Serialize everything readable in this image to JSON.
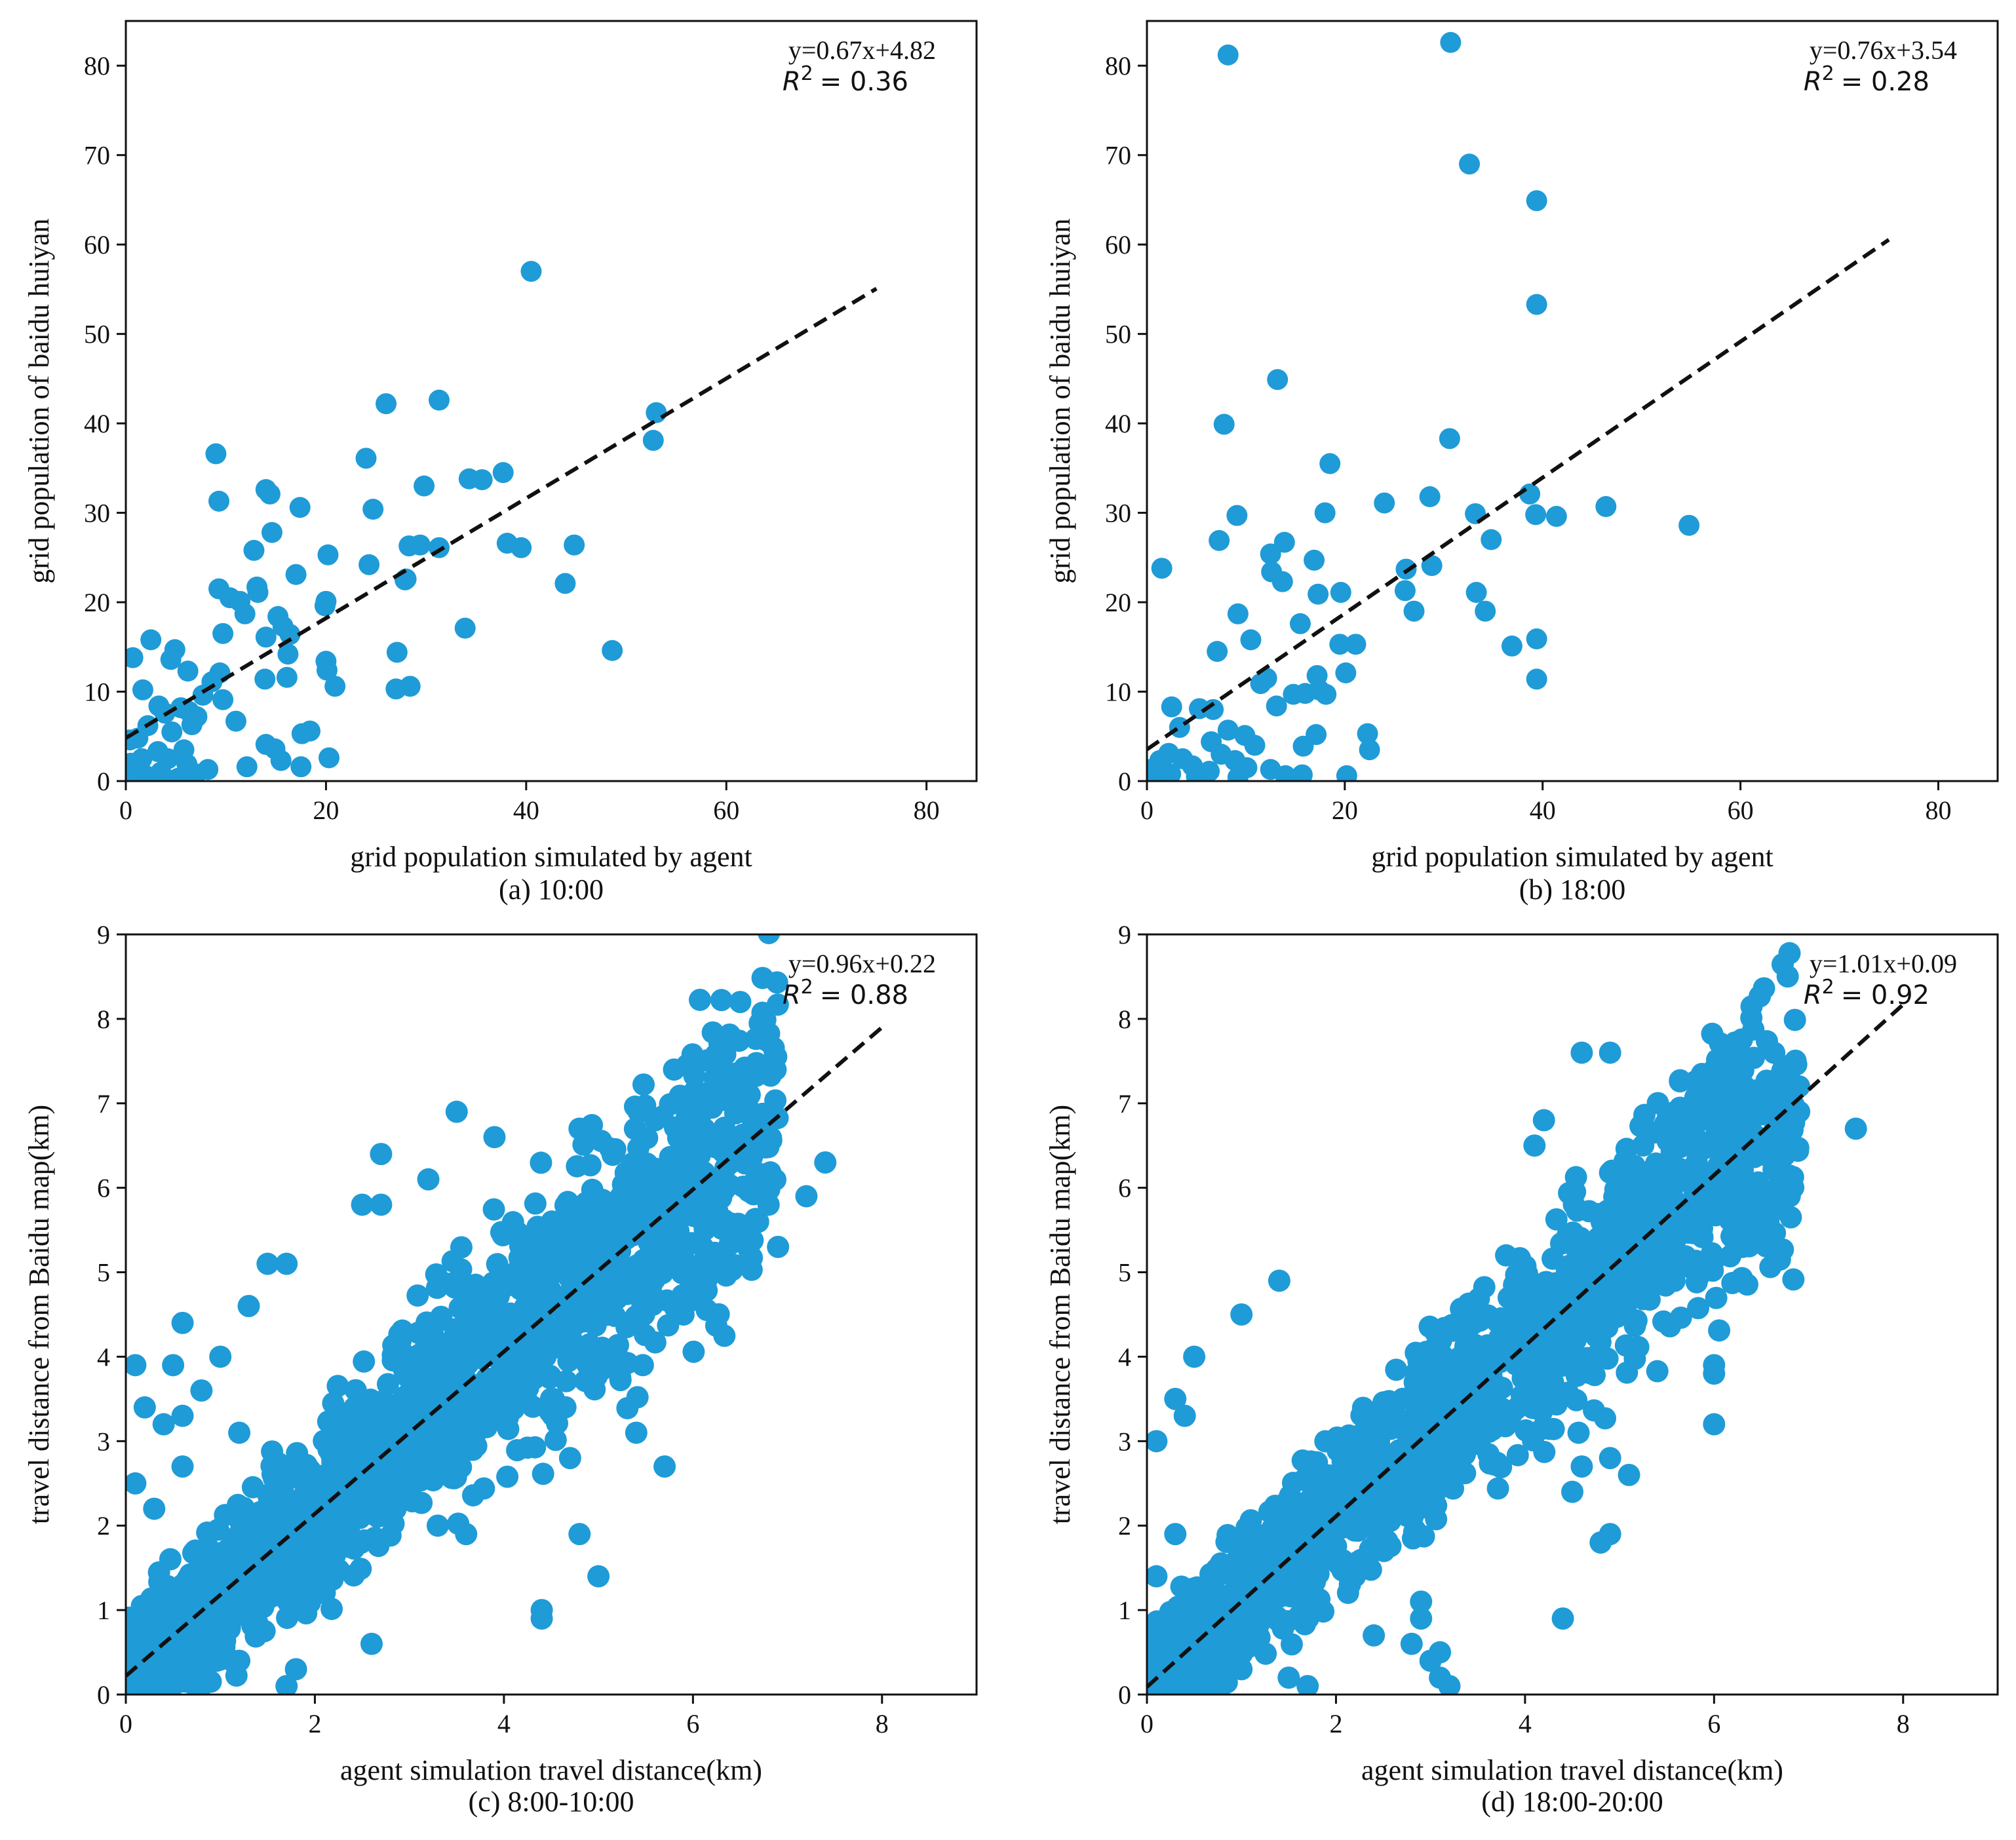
{
  "figure": {
    "colors": {
      "points": "#1f9bd7",
      "fit_line": "#111111",
      "axes": "#111111",
      "background": "#ffffff"
    }
  },
  "chart_data": [
    {
      "id": "a",
      "type": "scatter",
      "caption": "(a) 10:00",
      "xlabel": "grid population simulated by agent",
      "ylabel": "grid population of baidu huiyan",
      "xlim": [
        0,
        85
      ],
      "ylim": [
        0,
        85
      ],
      "xticks": [
        0,
        20,
        40,
        60,
        80
      ],
      "yticks": [
        0,
        10,
        20,
        30,
        40,
        50,
        60,
        70,
        80
      ],
      "fit": {
        "slope": 0.67,
        "intercept": 4.82,
        "x_end": 75
      },
      "equation": "y=0.67x+4.82",
      "r2_symbol": "R",
      "r2_exponent": "2",
      "r2_value": "= 0.36",
      "legend_position": "top-right",
      "points": [
        [
          40.5,
          57
        ],
        [
          31.3,
          42.6
        ],
        [
          26,
          42.2
        ],
        [
          53,
          41.2
        ],
        [
          52.7,
          38.1
        ],
        [
          9,
          36.6
        ],
        [
          24,
          36.1
        ],
        [
          37.7,
          34.5
        ],
        [
          34.3,
          33.8
        ],
        [
          35.6,
          33.7
        ],
        [
          29.8,
          33
        ],
        [
          14,
          32.6
        ],
        [
          14.4,
          32.1
        ],
        [
          9.3,
          31.3
        ],
        [
          17.4,
          30.6
        ],
        [
          24.7,
          30.4
        ],
        [
          14.6,
          27.8
        ],
        [
          38.1,
          26.6
        ],
        [
          39.5,
          26.1
        ],
        [
          44.8,
          26.4
        ],
        [
          28.3,
          26.3
        ],
        [
          29.4,
          26.4
        ],
        [
          31.3,
          26.1
        ],
        [
          12.8,
          25.8
        ],
        [
          20.2,
          25.3
        ],
        [
          24.3,
          24.2
        ],
        [
          17,
          23.1
        ],
        [
          28,
          22.6
        ],
        [
          27.9,
          22.5
        ],
        [
          43.9,
          22.1
        ],
        [
          9.3,
          21.5
        ],
        [
          13.1,
          21.7
        ],
        [
          13.2,
          21.1
        ],
        [
          10.4,
          20.5
        ],
        [
          11.4,
          20.1
        ],
        [
          20,
          20.1
        ],
        [
          19.9,
          19.6
        ],
        [
          11.9,
          18.7
        ],
        [
          15.2,
          18.4
        ],
        [
          15.7,
          17.3
        ],
        [
          33.9,
          17.1
        ],
        [
          16.4,
          16.4
        ],
        [
          9.7,
          16.5
        ],
        [
          14,
          16.1
        ],
        [
          2.5,
          15.8
        ],
        [
          4.9,
          14.7
        ],
        [
          16.2,
          14.2
        ],
        [
          27.1,
          14.4
        ],
        [
          48.6,
          14.6
        ],
        [
          0.7,
          13.8
        ],
        [
          4.5,
          13.6
        ],
        [
          20,
          13.4
        ],
        [
          20.1,
          12.4
        ],
        [
          6.2,
          12.3
        ],
        [
          9.4,
          12.1
        ],
        [
          13.9,
          11.4
        ],
        [
          16.1,
          11.6
        ],
        [
          8.6,
          11.1
        ],
        [
          20.9,
          10.6
        ],
        [
          28.4,
          10.6
        ],
        [
          27,
          10.3
        ],
        [
          1.7,
          10.2
        ],
        [
          7.7,
          9.6
        ],
        [
          9.7,
          9.1
        ],
        [
          3.3,
          8.4
        ],
        [
          5.5,
          8.2
        ],
        [
          6.3,
          7.8
        ],
        [
          3.9,
          7.6
        ],
        [
          7.1,
          7.2
        ],
        [
          11,
          6.7
        ],
        [
          6.6,
          6.3
        ],
        [
          2.2,
          6.2
        ],
        [
          4.6,
          5.5
        ],
        [
          18.4,
          5.6
        ],
        [
          17.6,
          5.3
        ],
        [
          1.2,
          4.8
        ],
        [
          0.4,
          4.6
        ],
        [
          14,
          4.1
        ],
        [
          14.9,
          3.6
        ],
        [
          5.8,
          3.5
        ],
        [
          3.2,
          3.3
        ],
        [
          15.5,
          2.3
        ],
        [
          20.3,
          2.6
        ],
        [
          1.6,
          2.5
        ],
        [
          4.2,
          2.5
        ],
        [
          0.5,
          2
        ],
        [
          6.1,
          1.9
        ],
        [
          12.1,
          1.6
        ],
        [
          17.5,
          1.6
        ],
        [
          8.2,
          1.3
        ],
        [
          3.5,
          1
        ],
        [
          7,
          0.8
        ],
        [
          2,
          0.6
        ],
        [
          1.1,
          0.4
        ],
        [
          0.3,
          0.2
        ],
        [
          5.2,
          0.3
        ]
      ]
    },
    {
      "id": "b",
      "type": "scatter",
      "caption": "(b) 18:00",
      "xlabel": "grid population simulated by agent",
      "ylabel": "grid population of baidu huiyan",
      "xlim": [
        0,
        86
      ],
      "ylim": [
        0,
        85
      ],
      "xticks": [
        0,
        20,
        40,
        60,
        80
      ],
      "yticks": [
        0,
        10,
        20,
        30,
        40,
        50,
        60,
        70,
        80
      ],
      "fit": {
        "slope": 0.76,
        "intercept": 3.54,
        "x_end": 75
      },
      "equation": "y=0.76x+3.54",
      "r2_symbol": "R",
      "r2_exponent": "2",
      "r2_value": "= 0.28",
      "legend_position": "top-right",
      "points": [
        [
          30.7,
          82.6
        ],
        [
          8.2,
          81.2
        ],
        [
          32.6,
          69
        ],
        [
          39.4,
          64.9
        ],
        [
          39.4,
          53.3
        ],
        [
          13.2,
          44.9
        ],
        [
          7.8,
          39.9
        ],
        [
          30.6,
          38.3
        ],
        [
          18.5,
          35.5
        ],
        [
          38.7,
          32.1
        ],
        [
          28.6,
          31.8
        ],
        [
          24,
          31.1
        ],
        [
          46.4,
          30.7
        ],
        [
          33.2,
          29.9
        ],
        [
          18,
          30
        ],
        [
          39.3,
          29.8
        ],
        [
          41.4,
          29.6
        ],
        [
          9.1,
          29.7
        ],
        [
          54.8,
          28.6
        ],
        [
          13.9,
          26.7
        ],
        [
          7.3,
          26.9
        ],
        [
          34.8,
          27
        ],
        [
          12.5,
          25.4
        ],
        [
          16.9,
          24.7
        ],
        [
          28.8,
          24.1
        ],
        [
          26.2,
          23.7
        ],
        [
          1.5,
          23.8
        ],
        [
          12.6,
          23.4
        ],
        [
          13.7,
          22.3
        ],
        [
          26.1,
          21.3
        ],
        [
          17.3,
          20.9
        ],
        [
          19.6,
          21.1
        ],
        [
          33.3,
          21.1
        ],
        [
          9.2,
          18.7
        ],
        [
          34.2,
          19
        ],
        [
          27,
          19
        ],
        [
          15.5,
          17.6
        ],
        [
          39.4,
          15.9
        ],
        [
          10.5,
          15.8
        ],
        [
          19.5,
          15.3
        ],
        [
          21.1,
          15.3
        ],
        [
          36.9,
          15.1
        ],
        [
          7.1,
          14.5
        ],
        [
          12.1,
          11.5
        ],
        [
          17.2,
          11.8
        ],
        [
          20.1,
          12.1
        ],
        [
          39.4,
          11.4
        ],
        [
          11.5,
          10.9
        ],
        [
          14.8,
          9.7
        ],
        [
          16,
          9.8
        ],
        [
          17.4,
          10.2
        ],
        [
          18.1,
          9.7
        ],
        [
          13.1,
          8.4
        ],
        [
          2.5,
          8.3
        ],
        [
          5.3,
          8.1
        ],
        [
          6.7,
          8
        ],
        [
          22.3,
          5.3
        ],
        [
          3.3,
          6
        ],
        [
          8.2,
          5.7
        ],
        [
          9.9,
          5.1
        ],
        [
          17.1,
          5.2
        ],
        [
          6.5,
          4.4
        ],
        [
          10.9,
          4
        ],
        [
          15.8,
          3.9
        ],
        [
          22.5,
          3.5
        ],
        [
          7.5,
          3
        ],
        [
          2.2,
          3.1
        ],
        [
          3.6,
          2.5
        ],
        [
          8.9,
          2.3
        ],
        [
          1.3,
          2.3
        ],
        [
          4.6,
          1.7
        ],
        [
          10.1,
          1.5
        ],
        [
          0.4,
          1.3
        ],
        [
          6.3,
          1.1
        ],
        [
          12.5,
          1.3
        ],
        [
          14,
          0.6
        ],
        [
          15.7,
          0.7
        ],
        [
          20.2,
          0.6
        ],
        [
          2.4,
          0.8
        ],
        [
          5,
          0.5
        ],
        [
          9.2,
          0.4
        ],
        [
          0.6,
          0.3
        ]
      ]
    },
    {
      "id": "c",
      "type": "scatter",
      "caption": "(c) 8:00-10:00",
      "xlabel": "agent simulation travel distance(km)",
      "ylabel": "travel distance from Baidu map(km)",
      "xlim": [
        0,
        9
      ],
      "ylim": [
        0,
        9
      ],
      "xticks": [
        0,
        2,
        4,
        6,
        8
      ],
      "yticks": [
        0,
        1,
        2,
        3,
        4,
        5,
        6,
        7,
        8,
        9
      ],
      "fit": {
        "slope": 0.96,
        "intercept": 0.22,
        "x_end": 8
      },
      "equation": "y=0.96x+0.22",
      "r2_symbol": "R",
      "r2_exponent": "2",
      "r2_value": "= 0.88",
      "legend_position": "top-right",
      "dense_cloud": {
        "count": 1600,
        "seed": 11,
        "x_min": 0,
        "x_max": 6.9,
        "x_skew": 1.15,
        "slope": 0.96,
        "intercept": 0.22,
        "spread": 0.55
      },
      "points": [
        [
          6.5,
          8.2
        ],
        [
          5.8,
          7.4
        ],
        [
          6.6,
          7.1
        ],
        [
          6.1,
          6.9
        ],
        [
          7.4,
          6.3
        ],
        [
          3.5,
          6.9
        ],
        [
          3.9,
          6.6
        ],
        [
          4.8,
          6.7
        ],
        [
          5.6,
          6.8
        ],
        [
          7.2,
          5.9
        ],
        [
          6.8,
          5.8
        ],
        [
          2.7,
          6.4
        ],
        [
          3.2,
          6.1
        ],
        [
          2.5,
          5.8
        ],
        [
          2.7,
          5.8
        ],
        [
          1.7,
          5.1
        ],
        [
          1.5,
          5.1
        ],
        [
          0.6,
          4.4
        ],
        [
          1.3,
          4.6
        ],
        [
          0.1,
          3.9
        ],
        [
          0.5,
          3.9
        ],
        [
          1,
          4
        ],
        [
          0.8,
          3.6
        ],
        [
          0.4,
          3.2
        ],
        [
          0.6,
          3.3
        ],
        [
          0.2,
          3.4
        ],
        [
          4.8,
          1.9
        ],
        [
          5,
          1.4
        ],
        [
          4.4,
          1
        ],
        [
          4.4,
          0.9
        ],
        [
          1.8,
          0.3
        ],
        [
          1.7,
          0.1
        ],
        [
          2.6,
          0.6
        ],
        [
          5.7,
          2.7
        ],
        [
          5.4,
          3.1
        ],
        [
          4.1,
          3.6
        ],
        [
          5.9,
          4.5
        ],
        [
          5.3,
          5.4
        ],
        [
          6.9,
          5.3
        ],
        [
          0.3,
          2.2
        ],
        [
          0.1,
          2.5
        ],
        [
          0.6,
          2.7
        ],
        [
          1.2,
          3.1
        ],
        [
          0.5,
          0.3
        ],
        [
          0.8,
          0.1
        ],
        [
          1.2,
          0.4
        ],
        [
          0.3,
          0.6
        ],
        [
          4.7,
          2.8
        ],
        [
          3.3,
          2
        ],
        [
          3.6,
          1.9
        ]
      ]
    },
    {
      "id": "d",
      "type": "scatter",
      "caption": "(d) 18:00-20:00",
      "xlabel": "agent simulation travel distance(km)",
      "ylabel": "travel distance from Baidu map(km)",
      "xlim": [
        0,
        9
      ],
      "ylim": [
        0,
        9
      ],
      "xticks": [
        0,
        2,
        4,
        6,
        8
      ],
      "yticks": [
        0,
        1,
        2,
        3,
        4,
        5,
        6,
        7,
        8,
        9
      ],
      "fit": {
        "slope": 1.01,
        "intercept": 0.09,
        "x_end": 8
      },
      "equation": "y=1.01x+0.09",
      "r2_symbol": "R",
      "r2_exponent": "2",
      "r2_value": "= 0.92",
      "legend_position": "top-right",
      "dense_cloud": {
        "count": 1500,
        "seed": 29,
        "x_min": 0,
        "x_max": 6.9,
        "x_skew": 1.1,
        "slope": 1.01,
        "intercept": 0.09,
        "spread": 0.52
      },
      "points": [
        [
          4.6,
          7.6
        ],
        [
          4.9,
          7.6
        ],
        [
          6,
          7.4
        ],
        [
          6.6,
          7.2
        ],
        [
          6.9,
          7.2
        ],
        [
          6.7,
          7.1
        ],
        [
          6.5,
          6.9
        ],
        [
          7.5,
          6.7
        ],
        [
          6.9,
          6.9
        ],
        [
          4.2,
          6.8
        ],
        [
          4.1,
          6.5
        ],
        [
          6.8,
          5.9
        ],
        [
          6.6,
          5.7
        ],
        [
          6.3,
          5.3
        ],
        [
          6.0,
          3.9
        ],
        [
          6.0,
          3.8
        ],
        [
          6.0,
          3.2
        ],
        [
          4.4,
          0.9
        ],
        [
          1.7,
          0.1
        ],
        [
          1.5,
          0.2
        ],
        [
          3.1,
          0.5
        ],
        [
          3.1,
          0.2
        ],
        [
          3.2,
          0.1
        ],
        [
          2.9,
          1.1
        ],
        [
          2.9,
          0.9
        ],
        [
          2.8,
          0.6
        ],
        [
          3.0,
          0.4
        ],
        [
          4.5,
          2.4
        ],
        [
          4.6,
          2.7
        ],
        [
          4.9,
          2.8
        ],
        [
          4.9,
          1.9
        ],
        [
          4.8,
          1.8
        ],
        [
          5.1,
          2.6
        ],
        [
          0.5,
          4
        ],
        [
          0.3,
          3.5
        ],
        [
          0.1,
          3
        ],
        [
          0.4,
          3.3
        ],
        [
          1.0,
          4.5
        ],
        [
          1.4,
          4.9
        ],
        [
          1.1,
          1.8
        ],
        [
          1.9,
          2.2
        ],
        [
          2.2,
          1.4
        ],
        [
          0.8,
          0.2
        ],
        [
          0.2,
          0.4
        ],
        [
          0.5,
          0.1
        ],
        [
          1.0,
          0.3
        ],
        [
          2.4,
          0.7
        ],
        [
          0.3,
          1.9
        ],
        [
          0.1,
          1.4
        ],
        [
          3.8,
          5.2
        ]
      ]
    }
  ]
}
